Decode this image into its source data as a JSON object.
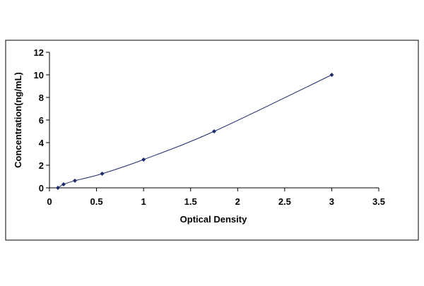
{
  "chart_data": {
    "type": "scatter",
    "title": "",
    "xlabel": "Optical Density",
    "ylabel": "Concentration(ng/mL)",
    "xlim": [
      0,
      3.5
    ],
    "ylim": [
      0,
      12
    ],
    "x_ticks": [
      "0",
      "0.5",
      "1",
      "1.5",
      "2",
      "2.5",
      "3",
      "3.5"
    ],
    "y_ticks": [
      "0",
      "2",
      "4",
      "6",
      "8",
      "10",
      "12"
    ],
    "grid": false,
    "legend": "none",
    "series": [
      {
        "points": [
          {
            "x": 0.09,
            "y": 0.0
          },
          {
            "x": 0.15,
            "y": 0.31
          },
          {
            "x": 0.27,
            "y": 0.63
          },
          {
            "x": 0.56,
            "y": 1.25
          },
          {
            "x": 1.0,
            "y": 2.5
          },
          {
            "x": 1.75,
            "y": 5.0
          },
          {
            "x": 3.0,
            "y": 10.0
          }
        ],
        "fit": "smooth curve",
        "color": "#1f2a6e"
      }
    ]
  }
}
